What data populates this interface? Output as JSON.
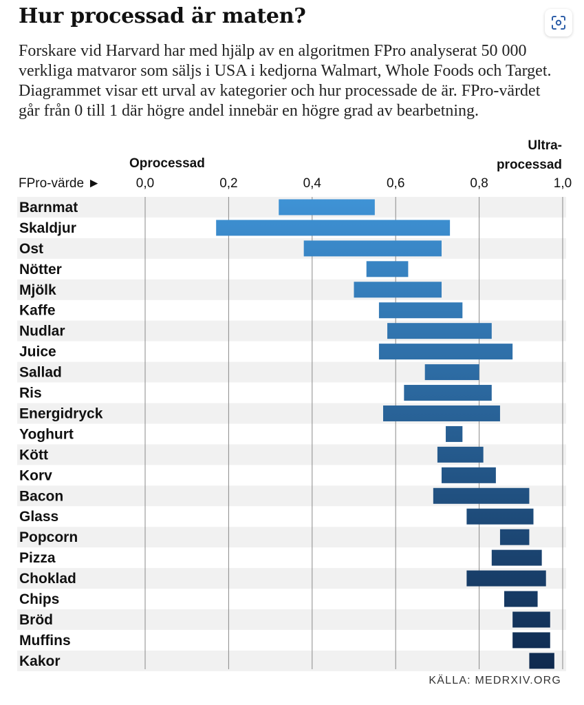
{
  "header": {
    "title": "Hur processad är maten?",
    "subtitle": "Forskare vid Harvard har med hjälp av en algoritmen FPro analyserat 50 000 verkliga matvaror som säljs i USA i kedjorna Walmart, Whole Foods och Target. Diagrammet visar ett urval av kategorier och hur processade de är. FPro-värdet går från 0 till 1 där högre andel innebär en högre grad av bearbetning."
  },
  "toolbar": {
    "lens_icon": "lens-scan-icon"
  },
  "chart_data": {
    "type": "bar",
    "orientation": "horizontal-range",
    "axis_label": "FPro-värde ►",
    "head_left": "Oprocessad",
    "head_right_line1": "Ultra-",
    "head_right_line2": "processad",
    "xlim": [
      0,
      1
    ],
    "ticks": [
      "0,0",
      "0,2",
      "0,4",
      "0,6",
      "0,8",
      "1,0"
    ],
    "tick_values": [
      0,
      0.2,
      0.4,
      0.6,
      0.8,
      1.0
    ],
    "grid": true,
    "colors": {
      "start": "#3f93d6",
      "end": "#0f2a4f",
      "stripe": "#f1f1f1",
      "grid": "#888888"
    },
    "categories": [
      "Barnmat",
      "Skaldjur",
      "Ost",
      "Nötter",
      "Mjölk",
      "Kaffe",
      "Nudlar",
      "Juice",
      "Sallad",
      "Ris",
      "Energidryck",
      "Yoghurt",
      "Kött",
      "Korv",
      "Bacon",
      "Glass",
      "Popcorn",
      "Pizza",
      "Choklad",
      "Chips",
      "Bröd",
      "Muffins",
      "Kakor"
    ],
    "ranges": [
      [
        0.32,
        0.55
      ],
      [
        0.17,
        0.73
      ],
      [
        0.38,
        0.71
      ],
      [
        0.53,
        0.63
      ],
      [
        0.5,
        0.71
      ],
      [
        0.56,
        0.76
      ],
      [
        0.58,
        0.83
      ],
      [
        0.56,
        0.88
      ],
      [
        0.67,
        0.8
      ],
      [
        0.62,
        0.83
      ],
      [
        0.57,
        0.85
      ],
      [
        0.72,
        0.76
      ],
      [
        0.7,
        0.81
      ],
      [
        0.71,
        0.84
      ],
      [
        0.69,
        0.92
      ],
      [
        0.77,
        0.93
      ],
      [
        0.85,
        0.92
      ],
      [
        0.83,
        0.95
      ],
      [
        0.77,
        0.96
      ],
      [
        0.86,
        0.94
      ],
      [
        0.88,
        0.97
      ],
      [
        0.88,
        0.97
      ],
      [
        0.92,
        0.98
      ]
    ]
  },
  "footer": {
    "source": "KÄLLA: MEDRXIV.ORG"
  }
}
